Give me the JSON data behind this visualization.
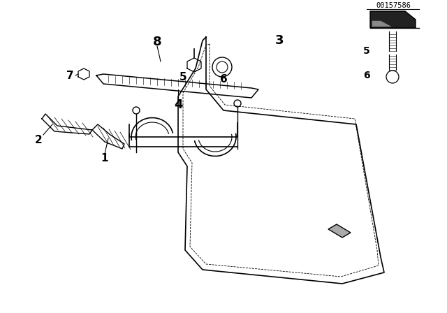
{
  "title": "",
  "background_color": "#ffffff",
  "line_color": "#000000",
  "part_number_text": "00157586",
  "figsize": [
    6.4,
    4.48
  ],
  "dpi": 100
}
